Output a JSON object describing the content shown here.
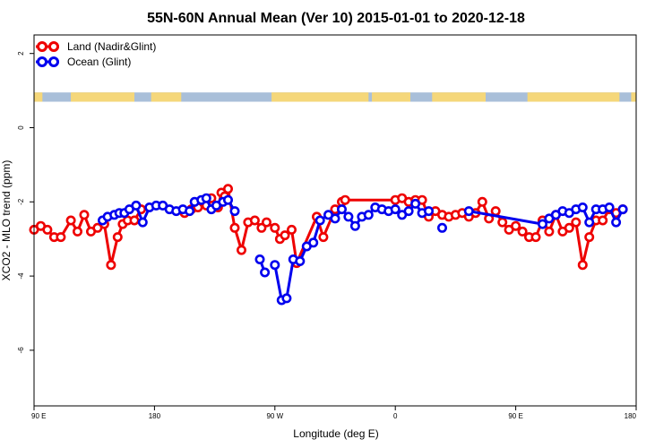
{
  "chart_data": {
    "type": "line",
    "title": "55N-60N Annual Mean (Ver 10)   2015-01-01 to 2020-12-18",
    "xlabel": "Longitude (deg E)",
    "ylabel": "XCO2 - MLO trend (ppm)",
    "xlim": [
      90,
      450
    ],
    "ylim": [
      -7.5,
      2.5
    ],
    "x_ticks": [
      {
        "value": 90,
        "label": "90 E"
      },
      {
        "value": 162,
        "label": "180"
      },
      {
        "value": 234,
        "label": "90 W"
      },
      {
        "value": 306,
        "label": "0"
      },
      {
        "value": 378,
        "label": "90 E"
      },
      {
        "value": 450,
        "label": "180"
      }
    ],
    "y_ticks": [
      {
        "value": 2,
        "label": "2"
      },
      {
        "value": 0,
        "label": "0"
      },
      {
        "value": -2,
        "label": "-2"
      },
      {
        "value": -4,
        "label": "-4"
      },
      {
        "value": -6,
        "label": "-6"
      }
    ],
    "legend": [
      {
        "name": "Land (Nadir&Glint)",
        "color": "#ee0000"
      },
      {
        "name": "Ocean (Glint)",
        "color": "#0000ee"
      }
    ],
    "land_strip": {
      "y_range": [
        0.7,
        0.95
      ],
      "land_color": "#f5d77a",
      "ocean_color": "#a9bfd9"
    },
    "series": [
      {
        "name": "Land (Nadir&Glint)",
        "color": "#ee0000",
        "x": [
          90,
          94,
          98,
          102,
          106,
          112,
          116,
          120,
          124,
          128,
          132,
          136,
          140,
          143,
          146,
          150,
          154,
          180,
          184,
          188,
          193,
          196,
          200,
          202,
          204,
          206,
          210,
          214,
          218,
          222,
          226,
          229,
          234,
          237,
          240,
          244,
          247,
          259,
          263,
          270,
          274,
          276,
          306,
          310,
          314,
          318,
          322,
          326,
          330,
          334,
          338,
          342,
          346,
          350,
          354,
          358,
          362,
          366,
          370,
          374,
          378,
          382,
          386,
          390,
          394,
          398,
          402,
          406,
          410,
          414,
          418,
          422,
          426,
          430,
          434,
          438,
          442
        ],
        "y": [
          -2.75,
          -2.65,
          -2.75,
          -2.95,
          -2.95,
          -2.5,
          -2.8,
          -2.35,
          -2.8,
          -2.7,
          -2.6,
          -3.7,
          -2.95,
          -2.6,
          -2.5,
          -2.5,
          -2.2,
          -2.3,
          -2.2,
          -2.15,
          -2.1,
          -1.9,
          -2.15,
          -1.75,
          -1.85,
          -1.65,
          -2.7,
          -3.3,
          -2.55,
          -2.5,
          -2.7,
          -2.55,
          -2.7,
          -3.0,
          -2.9,
          -2.75,
          -3.65,
          -2.4,
          -2.95,
          -2.2,
          -2.0,
          -1.95,
          -1.95,
          -1.9,
          -2.0,
          -1.95,
          -1.95,
          -2.4,
          -2.25,
          -2.35,
          -2.4,
          -2.35,
          -2.3,
          -2.4,
          -2.3,
          -2.0,
          -2.45,
          -2.25,
          -2.55,
          -2.75,
          -2.65,
          -2.8,
          -2.95,
          -2.95,
          -2.5,
          -2.8,
          -2.35,
          -2.8,
          -2.7,
          -2.55,
          -3.7,
          -2.95,
          -2.5,
          -2.5,
          -2.2,
          -2.3,
          -2.2
        ],
        "break_after": [
          16,
          20,
          39
        ]
      },
      {
        "name": "Ocean (Glint)",
        "color": "#0000ee",
        "x": [
          131,
          134,
          138,
          141,
          144,
          147,
          151,
          155,
          159,
          163,
          167,
          171,
          175,
          179,
          183,
          186,
          190,
          193,
          196,
          199,
          203,
          206,
          210,
          225,
          228,
          234,
          238,
          241,
          245,
          249,
          253,
          257,
          261,
          266,
          270,
          274,
          278,
          282,
          286,
          290,
          294,
          298,
          302,
          306,
          310,
          314,
          318,
          322,
          326,
          334,
          350,
          394,
          398,
          402,
          406,
          410,
          414,
          418,
          422,
          426,
          430,
          434,
          438,
          442
        ],
        "y": [
          -2.5,
          -2.4,
          -2.35,
          -2.3,
          -2.3,
          -2.2,
          -2.1,
          -2.55,
          -2.15,
          -2.1,
          -2.1,
          -2.2,
          -2.25,
          -2.2,
          -2.25,
          -2.0,
          -1.95,
          -1.9,
          -2.2,
          -2.1,
          -2.0,
          -1.95,
          -2.25,
          -3.55,
          -3.9,
          -3.7,
          -4.65,
          -4.6,
          -3.55,
          -3.6,
          -3.2,
          -3.1,
          -2.5,
          -2.35,
          -2.45,
          -2.2,
          -2.4,
          -2.65,
          -2.4,
          -2.35,
          -2.15,
          -2.2,
          -2.25,
          -2.2,
          -2.35,
          -2.25,
          -2.05,
          -2.3,
          -2.25,
          -2.7,
          -2.25,
          -2.6,
          -2.45,
          -2.35,
          -2.25,
          -2.3,
          -2.2,
          -2.15,
          -2.55,
          -2.2,
          -2.2,
          -2.15,
          -2.55,
          -2.2
        ],
        "break_after": [
          22,
          24,
          47,
          48,
          49
        ]
      }
    ]
  }
}
